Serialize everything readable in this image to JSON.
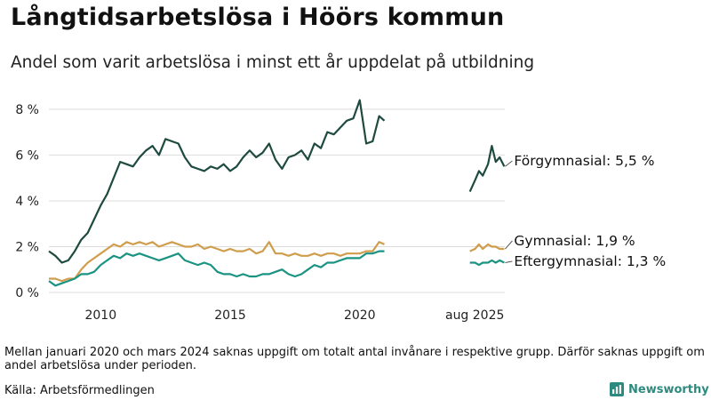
{
  "title": "Långtidsarbetslösa i Höörs kommun",
  "subtitle": "Andel som varit arbetslösa i minst ett år uppdelat på utbildning",
  "note": "Mellan januari 2020 och mars 2024 saknas uppgift om totalt antal invånare i respektive grupp. Därför saknas uppgift om andel arbetslösa under perioden.",
  "source": "Källa: Arbetsförmedlingen",
  "brand": "Newsworthy",
  "colors": {
    "forgymnasial": "#1f4a40",
    "gymnasial": "#cf9d4c",
    "eftergymnasial": "#1b9383",
    "grid": "#dddddd",
    "brand": "#2d8a7e"
  },
  "chart_data": {
    "type": "line",
    "ylim": [
      0,
      8.5
    ],
    "xlim": [
      2008.0,
      2025.6
    ],
    "yticks": [
      0,
      2,
      4,
      6,
      8
    ],
    "ytick_labels": [
      "0 %",
      "2 %",
      "4 %",
      "6 %",
      "8 %"
    ],
    "xticks": [
      2010,
      2015,
      2020,
      2025.58
    ],
    "xtick_labels": [
      "2010",
      "2015",
      "2020",
      "aug 2025"
    ],
    "grid": true,
    "series": [
      {
        "name": "Förgymnasial",
        "end_label": "Förgymnasial: 5,5 %",
        "color": "#1f4a40",
        "segments": [
          {
            "x": [
              2008.0,
              2008.25,
              2008.5,
              2008.75,
              2009.0,
              2009.25,
              2009.5,
              2009.75,
              2010.0,
              2010.25,
              2010.5,
              2010.75,
              2011.0,
              2011.25,
              2011.5,
              2011.75,
              2012.0,
              2012.25,
              2012.5,
              2012.75,
              2013.0,
              2013.25,
              2013.5,
              2013.75,
              2014.0,
              2014.25,
              2014.5,
              2014.75,
              2015.0,
              2015.25,
              2015.5,
              2015.75,
              2016.0,
              2016.25,
              2016.5,
              2016.75,
              2017.0,
              2017.25,
              2017.5,
              2017.75,
              2018.0,
              2018.25,
              2018.5,
              2018.75,
              2019.0,
              2019.25,
              2019.5,
              2019.75,
              2020.0,
              2020.25,
              2020.5,
              2020.75,
              2020.95
            ],
            "y": [
              1.8,
              1.6,
              1.3,
              1.4,
              1.8,
              2.3,
              2.6,
              3.2,
              3.8,
              4.3,
              5.0,
              5.7,
              5.6,
              5.5,
              5.9,
              6.2,
              6.4,
              6.0,
              6.7,
              6.6,
              6.5,
              5.9,
              5.5,
              5.4,
              5.3,
              5.5,
              5.4,
              5.6,
              5.3,
              5.5,
              5.9,
              6.2,
              5.9,
              6.1,
              6.5,
              5.8,
              5.4,
              5.9,
              6.0,
              6.2,
              5.8,
              6.5,
              6.3,
              7.0,
              6.9,
              7.2,
              7.5,
              7.6,
              8.4,
              6.5,
              6.6,
              7.7,
              7.5
            ]
          },
          {
            "x": [
              2024.25,
              2024.45,
              2024.6,
              2024.75,
              2024.95,
              2025.1,
              2025.25,
              2025.4,
              2025.58
            ],
            "y": [
              4.4,
              4.9,
              5.3,
              5.1,
              5.6,
              6.4,
              5.7,
              5.9,
              5.5
            ]
          }
        ]
      },
      {
        "name": "Gymnasial",
        "end_label": "Gymnasial: 1,9 %",
        "color": "#cf9d4c",
        "segments": [
          {
            "x": [
              2008.0,
              2008.25,
              2008.5,
              2008.75,
              2009.0,
              2009.25,
              2009.5,
              2009.75,
              2010.0,
              2010.25,
              2010.5,
              2010.75,
              2011.0,
              2011.25,
              2011.5,
              2011.75,
              2012.0,
              2012.25,
              2012.5,
              2012.75,
              2013.0,
              2013.25,
              2013.5,
              2013.75,
              2014.0,
              2014.25,
              2014.5,
              2014.75,
              2015.0,
              2015.25,
              2015.5,
              2015.75,
              2016.0,
              2016.25,
              2016.5,
              2016.75,
              2017.0,
              2017.25,
              2017.5,
              2017.75,
              2018.0,
              2018.25,
              2018.5,
              2018.75,
              2019.0,
              2019.25,
              2019.5,
              2019.75,
              2020.0,
              2020.25,
              2020.5,
              2020.75,
              2020.95
            ],
            "y": [
              0.6,
              0.6,
              0.5,
              0.6,
              0.6,
              1.0,
              1.3,
              1.5,
              1.7,
              1.9,
              2.1,
              2.0,
              2.2,
              2.1,
              2.2,
              2.1,
              2.2,
              2.0,
              2.1,
              2.2,
              2.1,
              2.0,
              2.0,
              2.1,
              1.9,
              2.0,
              1.9,
              1.8,
              1.9,
              1.8,
              1.8,
              1.9,
              1.7,
              1.8,
              2.2,
              1.7,
              1.7,
              1.6,
              1.7,
              1.6,
              1.6,
              1.7,
              1.6,
              1.7,
              1.7,
              1.6,
              1.7,
              1.7,
              1.7,
              1.8,
              1.8,
              2.2,
              2.1
            ]
          },
          {
            "x": [
              2024.25,
              2024.45,
              2024.6,
              2024.75,
              2024.95,
              2025.1,
              2025.25,
              2025.4,
              2025.58
            ],
            "y": [
              1.8,
              1.9,
              2.1,
              1.9,
              2.1,
              2.0,
              2.0,
              1.9,
              1.9
            ]
          }
        ]
      },
      {
        "name": "Eftergymnasial",
        "end_label": "Eftergymnasial: 1,3 %",
        "color": "#1b9383",
        "segments": [
          {
            "x": [
              2008.0,
              2008.25,
              2008.5,
              2008.75,
              2009.0,
              2009.25,
              2009.5,
              2009.75,
              2010.0,
              2010.25,
              2010.5,
              2010.75,
              2011.0,
              2011.25,
              2011.5,
              2011.75,
              2012.0,
              2012.25,
              2012.5,
              2012.75,
              2013.0,
              2013.25,
              2013.5,
              2013.75,
              2014.0,
              2014.25,
              2014.5,
              2014.75,
              2015.0,
              2015.25,
              2015.5,
              2015.75,
              2016.0,
              2016.25,
              2016.5,
              2016.75,
              2017.0,
              2017.25,
              2017.5,
              2017.75,
              2018.0,
              2018.25,
              2018.5,
              2018.75,
              2019.0,
              2019.25,
              2019.5,
              2019.75,
              2020.0,
              2020.25,
              2020.5,
              2020.75,
              2020.95
            ],
            "y": [
              0.5,
              0.3,
              0.4,
              0.5,
              0.6,
              0.8,
              0.8,
              0.9,
              1.2,
              1.4,
              1.6,
              1.5,
              1.7,
              1.6,
              1.7,
              1.6,
              1.5,
              1.4,
              1.5,
              1.6,
              1.7,
              1.4,
              1.3,
              1.2,
              1.3,
              1.2,
              0.9,
              0.8,
              0.8,
              0.7,
              0.8,
              0.7,
              0.7,
              0.8,
              0.8,
              0.9,
              1.0,
              0.8,
              0.7,
              0.8,
              1.0,
              1.2,
              1.1,
              1.3,
              1.3,
              1.4,
              1.5,
              1.5,
              1.5,
              1.7,
              1.7,
              1.8,
              1.8
            ]
          },
          {
            "x": [
              2024.25,
              2024.45,
              2024.6,
              2024.75,
              2024.95,
              2025.1,
              2025.25,
              2025.4,
              2025.58
            ],
            "y": [
              1.3,
              1.3,
              1.2,
              1.3,
              1.3,
              1.4,
              1.3,
              1.4,
              1.3
            ]
          }
        ]
      }
    ]
  }
}
